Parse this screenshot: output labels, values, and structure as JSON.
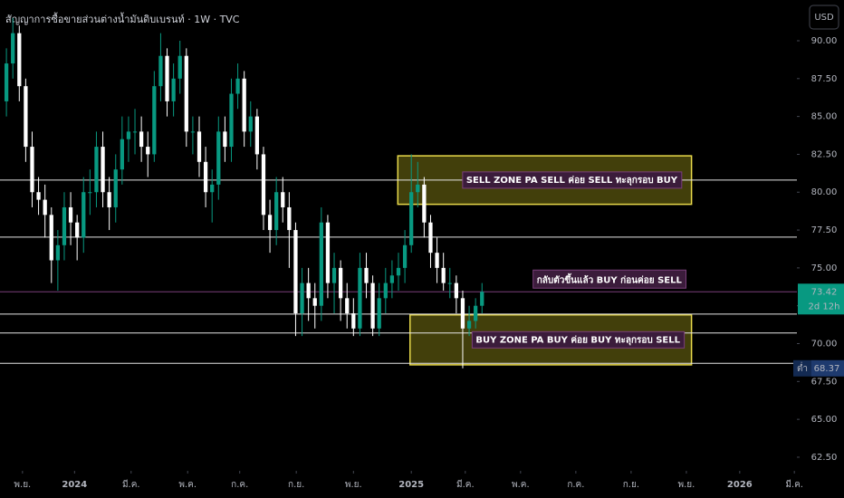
{
  "chart_data": {
    "type": "candlestick",
    "title": "สัญญาการซื้อขายส่วนต่างน้ำมันดิบเบรนท์ · 1W · TVC",
    "currency": "USD",
    "x": [
      0,
      1,
      2,
      3,
      4,
      5,
      6,
      7,
      8,
      9,
      10,
      11,
      12,
      13,
      14,
      15,
      16,
      17,
      18,
      19,
      20,
      21,
      22,
      23,
      24,
      25,
      26,
      27,
      28,
      29,
      30,
      31,
      32,
      33,
      34,
      35,
      36,
      37,
      38,
      39,
      40,
      41,
      42,
      43,
      44,
      45,
      46,
      47,
      48,
      49,
      50,
      51,
      52,
      53,
      54,
      55,
      56,
      57,
      58,
      59,
      60,
      61,
      62,
      63,
      64,
      65,
      66,
      67,
      68,
      69,
      70,
      71,
      72,
      73,
      74
    ],
    "open": [
      86,
      88.5,
      90.5,
      87,
      83,
      80,
      79.5,
      78.5,
      75.5,
      76.5,
      79,
      78,
      77,
      80,
      80,
      83,
      80,
      79,
      81.5,
      83.5,
      84,
      84,
      83,
      82.5,
      87,
      89,
      86,
      87.5,
      89,
      84,
      84,
      82,
      80,
      80.5,
      84,
      83,
      86.5,
      87.5,
      84,
      85,
      82.5,
      78.5,
      77.5,
      80,
      79,
      77.5,
      72,
      74,
      73,
      72.5,
      78,
      74,
      75,
      73,
      72,
      71,
      75,
      74,
      71,
      73,
      74,
      74.5,
      75,
      76.5,
      80,
      80.5,
      78,
      76,
      75,
      74,
      74,
      73,
      71,
      71.5,
      72.5
    ],
    "high": [
      89.5,
      91.5,
      91,
      87.5,
      84,
      81,
      80.5,
      79,
      77.5,
      80,
      80,
      78.5,
      81,
      81.5,
      84,
      84,
      81,
      82.5,
      85,
      85,
      85.5,
      85,
      84,
      88,
      90.5,
      89.5,
      88.5,
      90,
      89.5,
      85,
      85,
      83,
      81.5,
      85,
      85,
      87.5,
      88.5,
      88,
      86,
      85.5,
      83,
      79.5,
      81,
      81,
      80,
      78,
      75,
      75,
      74,
      79,
      78.5,
      76,
      75.5,
      74,
      73,
      76,
      76,
      74.5,
      74,
      75,
      75.5,
      76,
      77.5,
      82.5,
      82,
      81,
      78.5,
      77,
      76,
      75,
      74.5,
      73.5,
      72.5,
      73,
      74
    ],
    "low": [
      85,
      87.5,
      86,
      82,
      79,
      78.5,
      77,
      74,
      73.5,
      75.5,
      76.5,
      75.5,
      76,
      78.5,
      79,
      79,
      77.5,
      78,
      80.5,
      82,
      82.5,
      82,
      81,
      82,
      86,
      85,
      85,
      86.5,
      83,
      82.5,
      81,
      79,
      78,
      79.5,
      82,
      82,
      85.5,
      83,
      83,
      81.5,
      77.5,
      76,
      76.5,
      78,
      75,
      70.5,
      70.5,
      71.5,
      71,
      71.5,
      73,
      72,
      71.5,
      71,
      70.5,
      70.5,
      73,
      70.5,
      70.5,
      72,
      73,
      73.5,
      74,
      76,
      79,
      77,
      75,
      74,
      73.5,
      73,
      72,
      68.37,
      70.5,
      71,
      72
    ],
    "close": [
      88.5,
      90.5,
      87,
      83,
      80,
      79.5,
      78.5,
      75.5,
      76.5,
      79,
      78,
      77,
      80,
      80,
      83,
      80,
      79,
      81.5,
      83.5,
      84,
      84,
      83,
      82.5,
      87,
      89,
      86,
      87.5,
      89,
      84,
      84,
      82,
      80,
      80.5,
      84,
      83,
      86.5,
      87.5,
      84,
      85,
      82.5,
      78.5,
      77.5,
      80,
      79,
      77.5,
      72,
      74,
      73,
      72.5,
      78,
      74,
      75,
      73,
      72,
      71,
      75,
      74,
      71,
      73,
      74,
      74.5,
      75,
      76.5,
      80,
      80.5,
      78,
      76,
      75,
      74,
      74,
      73,
      71,
      71.5,
      72.5,
      73.42
    ],
    "up_color": "#089981",
    "down_color": "#ffffff",
    "xlim": [
      -1,
      123
    ],
    "xticks": [
      {
        "value": 2.5,
        "label": "พ.ย."
      },
      {
        "value": 10.6,
        "label": "2024"
      },
      {
        "value": 19.4,
        "label": "มี.ค."
      },
      {
        "value": 28.2,
        "label": "พ.ค."
      },
      {
        "value": 36.3,
        "label": "ก.ค."
      },
      {
        "value": 45.1,
        "label": "ก.ย."
      },
      {
        "value": 54,
        "label": "พ.ย."
      },
      {
        "value": 63,
        "label": "2025"
      },
      {
        "value": 71.4,
        "label": "มี.ค."
      },
      {
        "value": 80,
        "label": "พ.ค."
      },
      {
        "value": 88.6,
        "label": "ก.ค."
      },
      {
        "value": 97.2,
        "label": "ก.ย."
      },
      {
        "value": 105.8,
        "label": "พ.ย."
      },
      {
        "value": 114.1,
        "label": "2026"
      },
      {
        "value": 122.6,
        "label": "มี.ค."
      }
    ],
    "ylim": [
      61.6,
      92.69
    ],
    "yticks": [
      {
        "value": 62.5,
        "label": "62.50"
      },
      {
        "value": 65,
        "label": "65.00"
      },
      {
        "value": 67.5,
        "label": "67.50"
      },
      {
        "value": 70,
        "label": "70.00"
      },
      {
        "value": 72.5,
        "label": "72.50"
      },
      {
        "value": 75,
        "label": "75.00"
      },
      {
        "value": 77.5,
        "label": "77.50"
      },
      {
        "value": 80,
        "label": "80.00"
      },
      {
        "value": 82.5,
        "label": "82.50"
      },
      {
        "value": 85,
        "label": "85.00"
      },
      {
        "value": 87.5,
        "label": "87.50"
      },
      {
        "value": 90,
        "label": "90.00"
      }
    ],
    "hlines": [
      80.8,
      77.03,
      71.95,
      70.7,
      68.7
    ],
    "zones": [
      {
        "label": "SELL ZONE PA SELL ค่อย SELL ทะลุกรอบ BUY",
        "x": [
          60.9,
          106.6
        ],
        "y": [
          79.2,
          82.4
        ]
      },
      {
        "label": "BUY ZONE PA BUY ค่อย BUY ทะลุกรอบ SELL",
        "x": [
          62.8,
          106.6
        ],
        "y": [
          68.6,
          71.9
        ]
      }
    ],
    "annotation": {
      "label": "กลับตัวขึ้นแล้ว BUY ก่อนค่อย SELL",
      "x": 93.8,
      "y": 74.2
    },
    "last_price": {
      "value": 73.42,
      "label": "73.42",
      "countdown": "2d 12h"
    },
    "low_marker": {
      "label": "ต่ำ",
      "value": 68.37
    }
  }
}
